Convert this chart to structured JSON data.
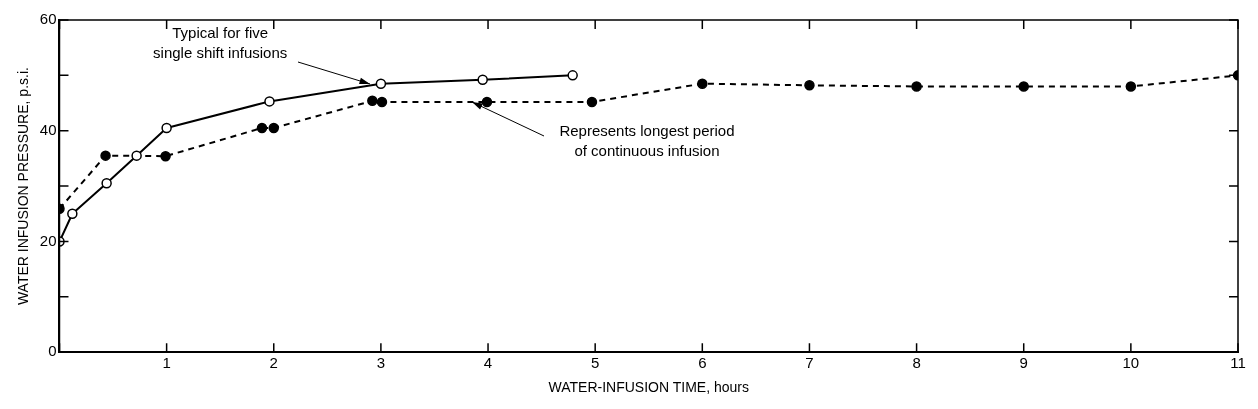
{
  "chart_data": {
    "type": "line",
    "xlabel": "WATER-INFUSION TIME, hours",
    "ylabel": "WATER INFUSION PRESSURE, p.s.i.",
    "xlim": [
      0,
      11
    ],
    "ylim": [
      0,
      60
    ],
    "xticks": [
      {
        "value": 0,
        "label": null
      },
      1,
      2,
      3,
      4,
      5,
      6,
      7,
      8,
      9,
      10,
      11
    ],
    "yticks": [
      0,
      {
        "value": 10,
        "label": null
      },
      20,
      {
        "value": 30,
        "label": null
      },
      40,
      {
        "value": 50,
        "label": null
      },
      60
    ],
    "grid": false,
    "legend": false,
    "marker": "circle",
    "series": [
      {
        "color": "#000000",
        "line_style": "solid",
        "x": [
          0,
          0.12,
          0.44,
          0.72,
          1.0,
          1.96,
          3.0,
          3.95,
          4.79
        ],
        "values": [
          20,
          25,
          30.5,
          35.5,
          40.5,
          45.3,
          48.5,
          49.2,
          50
        ]
      },
      {
        "color": "#000000",
        "line_style": "dashed",
        "x": [
          0,
          0.43,
          0.99,
          1.89,
          2.0,
          2.92,
          3.01,
          3.99,
          4.97,
          6,
          7,
          8,
          9,
          10,
          11
        ],
        "values": [
          25.9,
          35.5,
          35.4,
          40.5,
          40.5,
          45.4,
          45.2,
          45.2,
          45.2,
          48.5,
          48.2,
          48,
          48,
          48,
          50
        ]
      }
    ],
    "annotations": [
      {
        "text": "Typical for five\nsingle shift infusions",
        "x": 2.9,
        "y": 48.5
      },
      {
        "text": "Represents longest period\nof continuous infusion",
        "x": 3.85,
        "y": 45.2
      }
    ]
  }
}
